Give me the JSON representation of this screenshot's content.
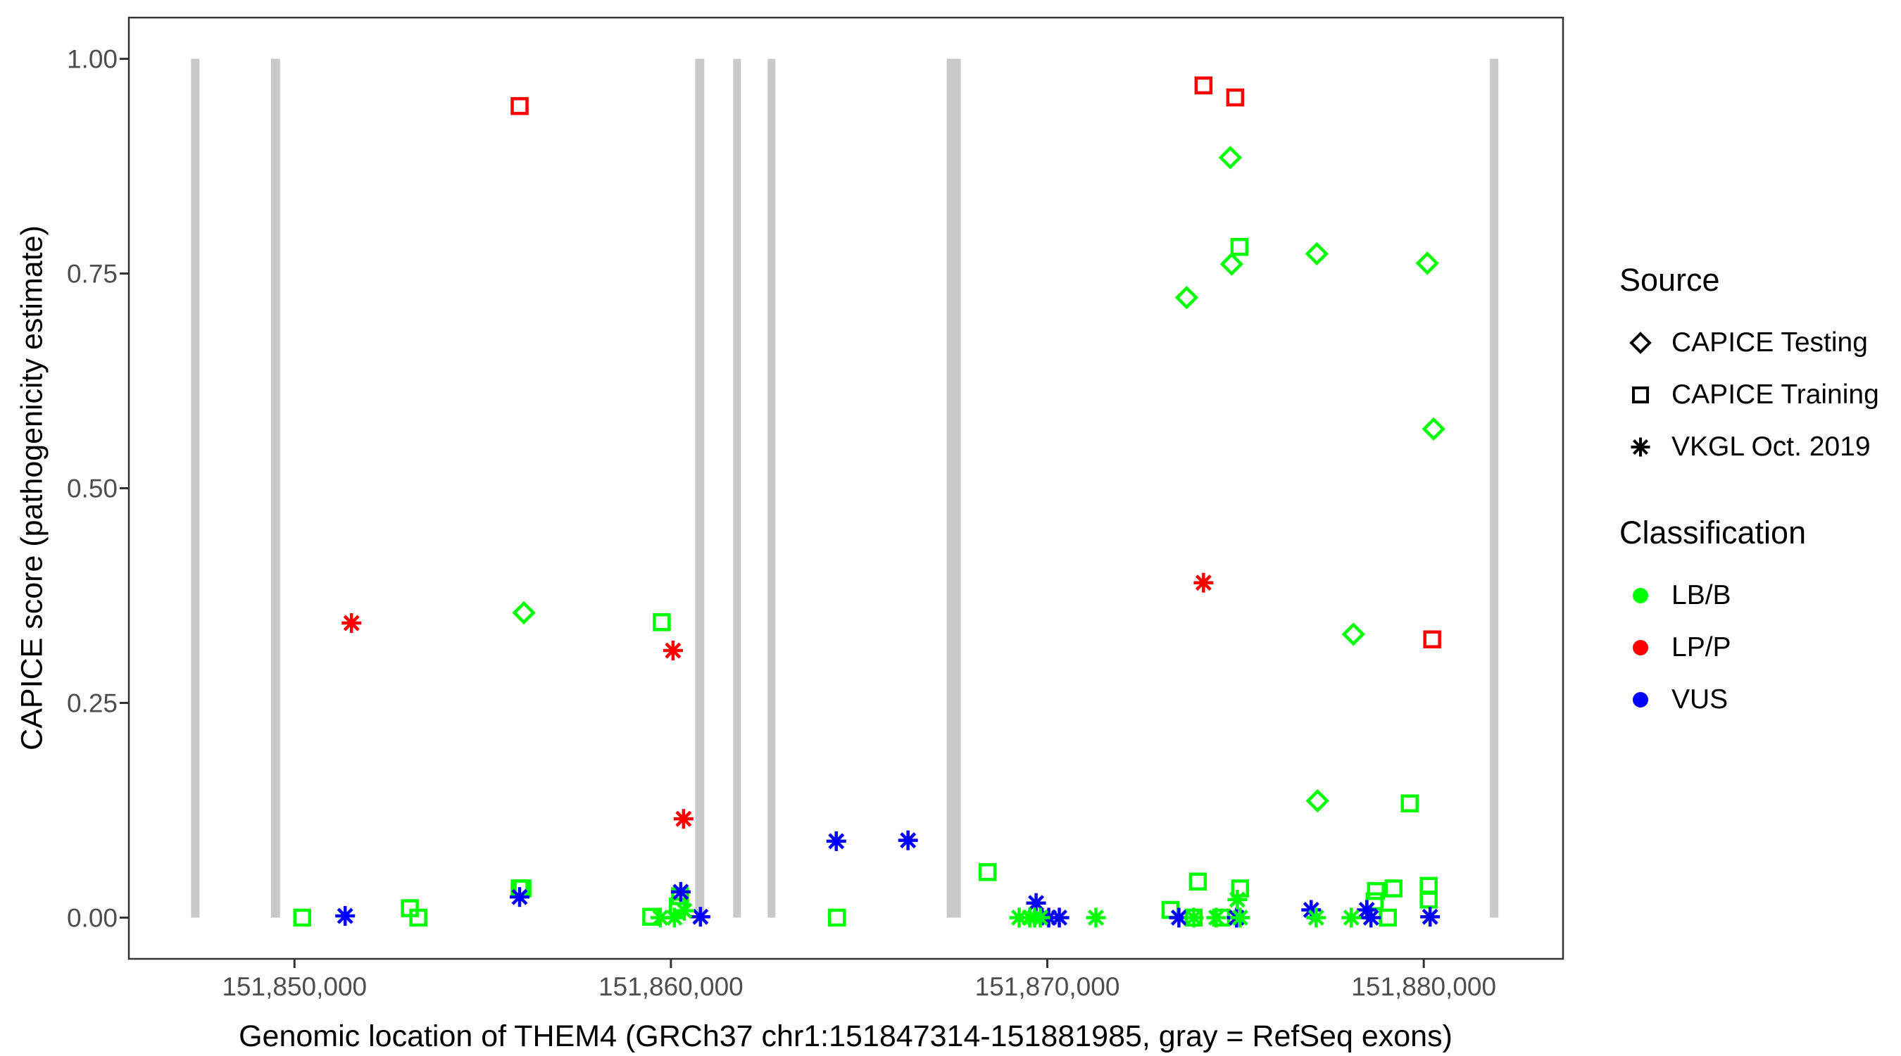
{
  "chart_data": {
    "type": "scatter",
    "title": "",
    "xlabel": "Genomic location of THEM4 (GRCh37 chr1:151847314-151881985, gray = RefSeq exons)",
    "ylabel": "CAPICE score (pathogenicity estimate)",
    "xlim": [
      151845600,
      151883700
    ],
    "ylim": [
      -0.048,
      1.048
    ],
    "grid": false,
    "x_ticks": [
      {
        "value": 151850000,
        "label": "151,850,000"
      },
      {
        "value": 151860000,
        "label": "151,860,000"
      },
      {
        "value": 151870000,
        "label": "151,870,000"
      },
      {
        "value": 151880000,
        "label": "151,880,000"
      }
    ],
    "y_ticks": [
      {
        "value": 0.0,
        "label": "0.00"
      },
      {
        "value": 0.25,
        "label": "0.25"
      },
      {
        "value": 0.5,
        "label": "0.50"
      },
      {
        "value": 0.75,
        "label": "0.75"
      },
      {
        "value": 1.0,
        "label": "1.00"
      }
    ],
    "exons_note": "gray vertical bars = RefSeq exons of THEM4",
    "exons": [
      {
        "start": 151847252,
        "end": 151847476
      },
      {
        "start": 151849374,
        "end": 151849617
      },
      {
        "start": 151860645,
        "end": 151860887
      },
      {
        "start": 151861654,
        "end": 151861860
      },
      {
        "start": 151862570,
        "end": 151862776
      },
      {
        "start": 151867327,
        "end": 151867701
      },
      {
        "start": 151881757,
        "end": 151881981
      }
    ],
    "points": [
      {
        "x": 151856094,
        "y": 0.355,
        "source": "CAPICE Testing",
        "classification": "LB/B"
      },
      {
        "x": 151873701,
        "y": 0.722,
        "source": "CAPICE Testing",
        "classification": "LB/B"
      },
      {
        "x": 151874860,
        "y": 0.885,
        "source": "CAPICE Testing",
        "classification": "LB/B"
      },
      {
        "x": 151874897,
        "y": 0.761,
        "source": "CAPICE Testing",
        "classification": "LB/B"
      },
      {
        "x": 151877159,
        "y": 0.773,
        "source": "CAPICE Testing",
        "classification": "LB/B"
      },
      {
        "x": 151880094,
        "y": 0.762,
        "source": "CAPICE Testing",
        "classification": "LB/B"
      },
      {
        "x": 151880262,
        "y": 0.569,
        "source": "CAPICE Testing",
        "classification": "LB/B"
      },
      {
        "x": 151878131,
        "y": 0.33,
        "source": "CAPICE Testing",
        "classification": "LB/B"
      },
      {
        "x": 151877178,
        "y": 0.136,
        "source": "CAPICE Testing",
        "classification": "LB/B"
      },
      {
        "x": 151855981,
        "y": 0.945,
        "source": "CAPICE Training",
        "classification": "LP/P"
      },
      {
        "x": 151874149,
        "y": 0.969,
        "source": "CAPICE Training",
        "classification": "LP/P"
      },
      {
        "x": 151874991,
        "y": 0.955,
        "source": "CAPICE Training",
        "classification": "LP/P"
      },
      {
        "x": 151880224,
        "y": 0.324,
        "source": "CAPICE Training",
        "classification": "LP/P"
      },
      {
        "x": 151859757,
        "y": 0.344,
        "source": "CAPICE Training",
        "classification": "LB/B"
      },
      {
        "x": 151875103,
        "y": 0.781,
        "source": "CAPICE Training",
        "classification": "LB/B"
      },
      {
        "x": 151879626,
        "y": 0.133,
        "source": "CAPICE Training",
        "classification": "LB/B"
      },
      {
        "x": 151850206,
        "y": 0.0,
        "source": "CAPICE Training",
        "classification": "LB/B"
      },
      {
        "x": 151853065,
        "y": 0.011,
        "source": "CAPICE Training",
        "classification": "LB/B"
      },
      {
        "x": 151853290,
        "y": 0.0,
        "source": "CAPICE Training",
        "classification": "LB/B"
      },
      {
        "x": 151855981,
        "y": 0.034,
        "source": "CAPICE Training",
        "classification": "LB/B"
      },
      {
        "x": 151856056,
        "y": 0.034,
        "source": "CAPICE Training",
        "classification": "LB/B"
      },
      {
        "x": 151859477,
        "y": 0.001,
        "source": "CAPICE Training",
        "classification": "LB/B"
      },
      {
        "x": 151860187,
        "y": 0.013,
        "source": "CAPICE Training",
        "classification": "LB/B"
      },
      {
        "x": 151860243,
        "y": 0.025,
        "source": "CAPICE Training",
        "classification": "LB/B"
      },
      {
        "x": 151864411,
        "y": 0.0,
        "source": "CAPICE Training",
        "classification": "LB/B"
      },
      {
        "x": 151868411,
        "y": 0.053,
        "source": "CAPICE Training",
        "classification": "LB/B"
      },
      {
        "x": 151873271,
        "y": 0.009,
        "source": "CAPICE Training",
        "classification": "LB/B"
      },
      {
        "x": 151874000,
        "y": 0.042,
        "source": "CAPICE Training",
        "classification": "LB/B"
      },
      {
        "x": 151873888,
        "y": 0.0,
        "source": "CAPICE Training",
        "classification": "LB/B"
      },
      {
        "x": 151874617,
        "y": 0.0,
        "source": "CAPICE Training",
        "classification": "LB/B"
      },
      {
        "x": 151875121,
        "y": 0.034,
        "source": "CAPICE Training",
        "classification": "LB/B"
      },
      {
        "x": 151878692,
        "y": 0.019,
        "source": "CAPICE Training",
        "classification": "LB/B"
      },
      {
        "x": 151878729,
        "y": 0.031,
        "source": "CAPICE Training",
        "classification": "LB/B"
      },
      {
        "x": 151879047,
        "y": 0.0,
        "source": "CAPICE Training",
        "classification": "LB/B"
      },
      {
        "x": 151879196,
        "y": 0.034,
        "source": "CAPICE Training",
        "classification": "LB/B"
      },
      {
        "x": 151880131,
        "y": 0.037,
        "source": "CAPICE Training",
        "classification": "LB/B"
      },
      {
        "x": 151880131,
        "y": 0.021,
        "source": "CAPICE Training",
        "classification": "LB/B"
      },
      {
        "x": 151851514,
        "y": 0.343,
        "source": "VKGL Oct. 2019",
        "classification": "LP/P"
      },
      {
        "x": 151860056,
        "y": 0.311,
        "source": "VKGL Oct. 2019",
        "classification": "LP/P"
      },
      {
        "x": 151860336,
        "y": 0.115,
        "source": "VKGL Oct. 2019",
        "classification": "LP/P"
      },
      {
        "x": 151874149,
        "y": 0.39,
        "source": "VKGL Oct. 2019",
        "classification": "LP/P"
      },
      {
        "x": 151851346,
        "y": 0.002,
        "source": "VKGL Oct. 2019",
        "classification": "VUS"
      },
      {
        "x": 151855981,
        "y": 0.024,
        "source": "VKGL Oct. 2019",
        "classification": "VUS"
      },
      {
        "x": 151860262,
        "y": 0.03,
        "source": "VKGL Oct. 2019",
        "classification": "VUS"
      },
      {
        "x": 151860785,
        "y": 0.001,
        "source": "VKGL Oct. 2019",
        "classification": "VUS"
      },
      {
        "x": 151864393,
        "y": 0.089,
        "source": "VKGL Oct. 2019",
        "classification": "VUS"
      },
      {
        "x": 151866299,
        "y": 0.09,
        "source": "VKGL Oct. 2019",
        "classification": "VUS"
      },
      {
        "x": 151869701,
        "y": 0.017,
        "source": "VKGL Oct. 2019",
        "classification": "VUS"
      },
      {
        "x": 151870037,
        "y": 0.0,
        "source": "VKGL Oct. 2019",
        "classification": "VUS"
      },
      {
        "x": 151870318,
        "y": 0.0,
        "source": "VKGL Oct. 2019",
        "classification": "VUS"
      },
      {
        "x": 151873495,
        "y": 0.0,
        "source": "VKGL Oct. 2019",
        "classification": "VUS"
      },
      {
        "x": 151875028,
        "y": 0.0,
        "source": "VKGL Oct. 2019",
        "classification": "VUS"
      },
      {
        "x": 151877009,
        "y": 0.009,
        "source": "VKGL Oct. 2019",
        "classification": "VUS"
      },
      {
        "x": 151878486,
        "y": 0.009,
        "source": "VKGL Oct. 2019",
        "classification": "VUS"
      },
      {
        "x": 151878598,
        "y": 0.0,
        "source": "VKGL Oct. 2019",
        "classification": "VUS"
      },
      {
        "x": 151880168,
        "y": 0.001,
        "source": "VKGL Oct. 2019",
        "classification": "VUS"
      },
      {
        "x": 151859720,
        "y": 0.0,
        "source": "VKGL Oct. 2019",
        "classification": "LB/B"
      },
      {
        "x": 151860094,
        "y": 0.0,
        "source": "VKGL Oct. 2019",
        "classification": "LB/B"
      },
      {
        "x": 151860355,
        "y": 0.008,
        "source": "VKGL Oct. 2019",
        "classification": "LB/B"
      },
      {
        "x": 151869252,
        "y": 0.0,
        "source": "VKGL Oct. 2019",
        "classification": "LB/B"
      },
      {
        "x": 151869533,
        "y": 0.0,
        "source": "VKGL Oct. 2019",
        "classification": "LB/B"
      },
      {
        "x": 151869664,
        "y": 0.0,
        "source": "VKGL Oct. 2019",
        "classification": "LB/B"
      },
      {
        "x": 151869813,
        "y": 0.0,
        "source": "VKGL Oct. 2019",
        "classification": "LB/B"
      },
      {
        "x": 151871290,
        "y": 0.0,
        "source": "VKGL Oct. 2019",
        "classification": "LB/B"
      },
      {
        "x": 151873888,
        "y": 0.0,
        "source": "VKGL Oct. 2019",
        "classification": "LB/B"
      },
      {
        "x": 151874486,
        "y": 0.0,
        "source": "VKGL Oct. 2019",
        "classification": "LB/B"
      },
      {
        "x": 151875047,
        "y": 0.021,
        "source": "VKGL Oct. 2019",
        "classification": "LB/B"
      },
      {
        "x": 151875121,
        "y": 0.0,
        "source": "VKGL Oct. 2019",
        "classification": "LB/B"
      },
      {
        "x": 151877140,
        "y": 0.0,
        "source": "VKGL Oct. 2019",
        "classification": "LB/B"
      },
      {
        "x": 151878075,
        "y": 0.0,
        "source": "VKGL Oct. 2019",
        "classification": "LB/B"
      }
    ]
  },
  "legend": {
    "source": {
      "title": "Source",
      "items": [
        {
          "label": "CAPICE Testing",
          "shape": "diamond"
        },
        {
          "label": "CAPICE Training",
          "shape": "square"
        },
        {
          "label": "VKGL Oct. 2019",
          "shape": "asterisk"
        }
      ]
    },
    "classification": {
      "title": "Classification",
      "items": [
        {
          "label": "LB/B",
          "color": "#00ff00"
        },
        {
          "label": "LP/P",
          "color": "#ff0000"
        },
        {
          "label": "VUS",
          "color": "#0000ff"
        }
      ]
    }
  },
  "colors": {
    "LB/B": "#00ff00",
    "LP/P": "#ff0000",
    "VUS": "#0000ff",
    "exon": "#c9c9c9",
    "panel_border": "#333333",
    "tick_label": "#4d4d4d",
    "legend_symbol": "#000000"
  }
}
